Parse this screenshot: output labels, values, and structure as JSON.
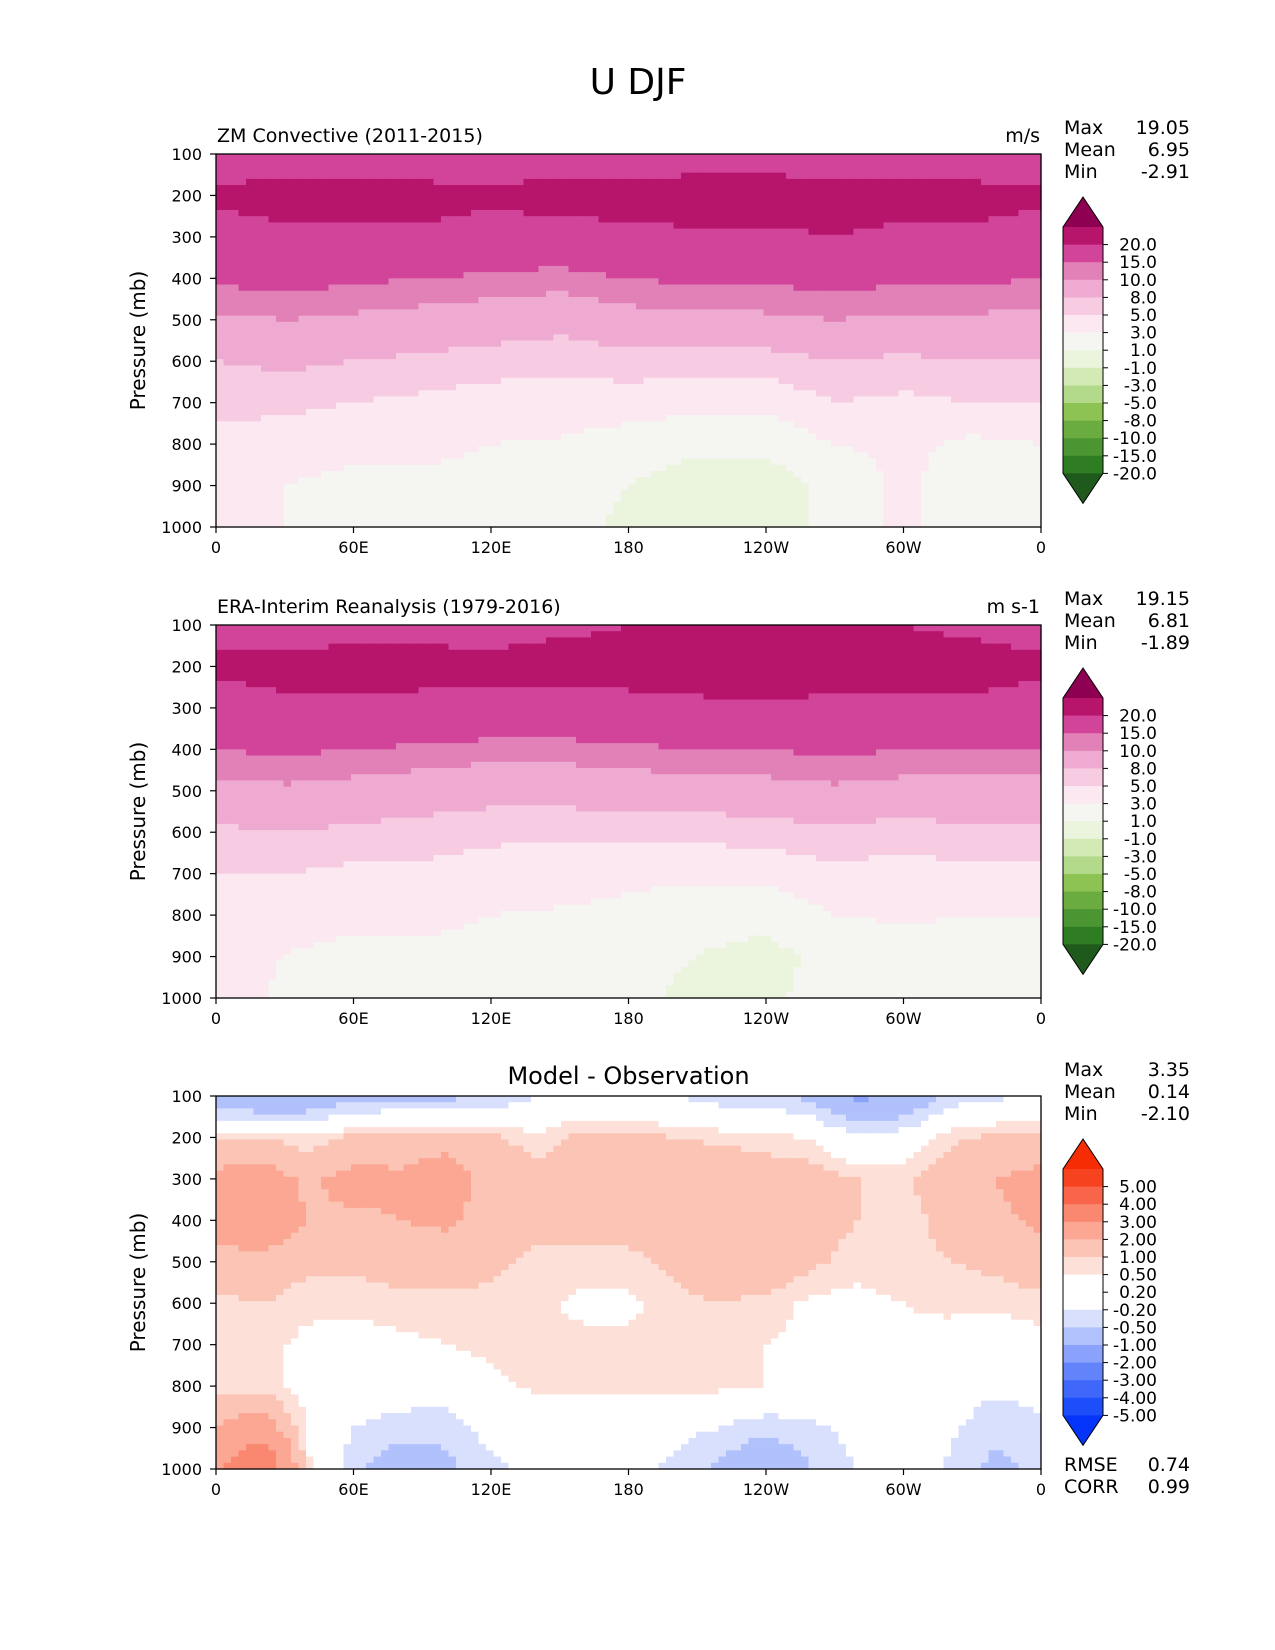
{
  "figure": {
    "suptitle": "U DJF"
  },
  "colormaps": {
    "pinkgreen": [
      "#1f5a1c",
      "#2f7d23",
      "#4b9633",
      "#6aac3f",
      "#8dc353",
      "#b3d98b",
      "#d4eab5",
      "#ebf4dd",
      "#f5f5f2",
      "#fbe8f1",
      "#f7cbe1",
      "#efaad1",
      "#e281b7",
      "#d1449a",
      "#b7146b",
      "#8e0152"
    ],
    "bluered": [
      "#0434f9",
      "#1e4ef9",
      "#3f68fa",
      "#6383fa",
      "#8aa2fb",
      "#b1c1fc",
      "#d8e0fe",
      "#ffffff",
      "#ffffff",
      "#fde1d8",
      "#fcc4b5",
      "#fba794",
      "#fa8870",
      "#f8654a",
      "#f7421f",
      "#f62c05"
    ]
  },
  "chart_data": [
    {
      "id": "model",
      "type": "contourf",
      "title": "ZM Convective (2011-2015)",
      "units": "m/s",
      "ylabel": "Pressure (mb)",
      "x_ticks": [
        "0",
        "60E",
        "120E",
        "180",
        "120W",
        "60W",
        "0"
      ],
      "y_ticks": [
        "100",
        "200",
        "300",
        "400",
        "500",
        "600",
        "700",
        "800",
        "900",
        "1000"
      ],
      "ylim": [
        100,
        1000
      ],
      "xlim": [
        0,
        360
      ],
      "colormap": "pinkgreen",
      "levels": [
        "-20.0",
        "-15.0",
        "-10.0",
        "-8.0",
        "-5.0",
        "-3.0",
        "-1.0",
        "1.0",
        "3.0",
        "5.0",
        "8.0",
        "10.0",
        "15.0",
        "20.0"
      ],
      "level_values": [
        -20,
        -15,
        -10,
        -8,
        -5,
        -3,
        -1,
        1,
        3,
        5,
        8,
        10,
        15,
        20
      ],
      "stats": [
        {
          "label": "Max",
          "value": "19.05"
        },
        {
          "label": "Mean",
          "value": "6.95"
        },
        {
          "label": "Min",
          "value": "-2.91"
        }
      ],
      "grid_lon": [
        0,
        30,
        60,
        90,
        120,
        150,
        180,
        210,
        240,
        270,
        300,
        330,
        360
      ],
      "grid_p": [
        100,
        200,
        300,
        400,
        500,
        600,
        700,
        800,
        900,
        1000
      ],
      "grid_values": [
        [
          12,
          12,
          11,
          11,
          12,
          12,
          12,
          12,
          12,
          12,
          11,
          11,
          12
        ],
        [
          16,
          17,
          17,
          17,
          16,
          17,
          17,
          18,
          18,
          17,
          17,
          17,
          16
        ],
        [
          13,
          14,
          14,
          14,
          13,
          13,
          14,
          14,
          14,
          15,
          14,
          14,
          13
        ],
        [
          10.5,
          11,
          10.5,
          10,
          9.5,
          9,
          10,
          10.5,
          10.5,
          11,
          10.5,
          10.5,
          10
        ],
        [
          7.5,
          8,
          7.5,
          7,
          6.5,
          6,
          7,
          7,
          7.5,
          8,
          7.5,
          7.5,
          7.5
        ],
        [
          5,
          5.5,
          5,
          4.5,
          4,
          3.5,
          4,
          4,
          4,
          5,
          4.5,
          5,
          5
        ],
        [
          3.5,
          3.5,
          3,
          2.5,
          2,
          2,
          2,
          1.5,
          1.5,
          3,
          2.5,
          3,
          3
        ],
        [
          2.5,
          2,
          1.5,
          1.5,
          1,
          0.8,
          0,
          -0.5,
          -0.5,
          1,
          1.5,
          0.5,
          1
        ],
        [
          2,
          1,
          0.5,
          0.5,
          0.5,
          0,
          -1,
          -2,
          -2,
          -0.5,
          1.5,
          -0.5,
          0
        ],
        [
          3,
          1,
          -0.5,
          -0.5,
          0,
          0,
          -1.5,
          -2.5,
          -2.5,
          0,
          1.5,
          -1,
          0
        ]
      ]
    },
    {
      "id": "obs",
      "type": "contourf",
      "title": "ERA-Interim Reanalysis (1979-2016)",
      "units": "m s-1",
      "ylabel": "Pressure (mb)",
      "x_ticks": [
        "0",
        "60E",
        "120E",
        "180",
        "120W",
        "60W",
        "0"
      ],
      "y_ticks": [
        "100",
        "200",
        "300",
        "400",
        "500",
        "600",
        "700",
        "800",
        "900",
        "1000"
      ],
      "ylim": [
        100,
        1000
      ],
      "xlim": [
        0,
        360
      ],
      "colormap": "pinkgreen",
      "levels": [
        "-20.0",
        "-15.0",
        "-10.0",
        "-8.0",
        "-5.0",
        "-3.0",
        "-1.0",
        "1.0",
        "3.0",
        "5.0",
        "8.0",
        "10.0",
        "15.0",
        "20.0"
      ],
      "level_values": [
        -20,
        -15,
        -10,
        -8,
        -5,
        -3,
        -1,
        1,
        3,
        5,
        8,
        10,
        15,
        20
      ],
      "stats": [
        {
          "label": "Max",
          "value": "19.15"
        },
        {
          "label": "Mean",
          "value": "6.81"
        },
        {
          "label": "Min",
          "value": "-1.89"
        }
      ],
      "grid_lon": [
        0,
        30,
        60,
        90,
        120,
        150,
        180,
        210,
        240,
        270,
        300,
        330,
        360
      ],
      "grid_p": [
        100,
        200,
        300,
        400,
        500,
        600,
        700,
        800,
        900,
        1000
      ],
      "grid_values": [
        [
          13,
          13,
          13,
          13,
          13,
          14,
          15,
          16,
          16,
          16,
          15,
          14,
          13
        ],
        [
          16,
          16.5,
          17,
          17,
          16.5,
          17,
          17,
          17.5,
          17.5,
          17,
          17,
          17,
          16
        ],
        [
          13,
          14,
          14,
          13.5,
          13,
          13,
          13.5,
          14,
          14.5,
          14,
          14,
          14,
          13
        ],
        [
          10,
          10.5,
          10,
          9.5,
          9,
          9,
          9.5,
          10,
          10,
          10.5,
          10,
          10,
          10
        ],
        [
          7,
          7.5,
          7,
          6.5,
          6,
          6,
          6.5,
          6.5,
          7,
          7.5,
          7,
          7,
          7
        ],
        [
          4.5,
          5,
          4.5,
          4,
          3.5,
          3.5,
          3.5,
          3.5,
          4,
          4.5,
          4,
          4.5,
          4.5
        ],
        [
          3,
          3,
          2.5,
          2.5,
          2,
          1.8,
          1.5,
          1.5,
          1.5,
          2.5,
          2,
          2.5,
          2.5
        ],
        [
          2,
          1.5,
          1.5,
          1.5,
          1,
          0.8,
          0.5,
          -0.5,
          -0.5,
          1,
          1.2,
          1,
          1
        ],
        [
          2,
          1,
          0.5,
          0.5,
          0.5,
          0,
          -0.5,
          -1,
          -1.5,
          -0.5,
          0.5,
          0,
          0
        ],
        [
          2.5,
          0.5,
          0,
          0,
          0,
          0,
          -0.5,
          -1.5,
          -1.5,
          0,
          0.5,
          -0.5,
          0
        ]
      ]
    },
    {
      "id": "diff",
      "type": "contourf",
      "title": "Model - Observation",
      "ylabel": "Pressure (mb)",
      "x_ticks": [
        "0",
        "60E",
        "120E",
        "180",
        "120W",
        "60W",
        "0"
      ],
      "y_ticks": [
        "100",
        "200",
        "300",
        "400",
        "500",
        "600",
        "700",
        "800",
        "900",
        "1000"
      ],
      "ylim": [
        100,
        1000
      ],
      "xlim": [
        0,
        360
      ],
      "colormap": "bluered",
      "levels": [
        "-5.00",
        "-4.00",
        "-3.00",
        "-2.00",
        "-1.00",
        "-0.50",
        "-0.20",
        "0.20",
        "0.50",
        "1.00",
        "2.00",
        "3.00",
        "4.00",
        "5.00"
      ],
      "level_values": [
        -5,
        -4,
        -3,
        -2,
        -1,
        -0.5,
        -0.2,
        0.2,
        0.5,
        1,
        2,
        3,
        4,
        5
      ],
      "stats": [
        {
          "label": "Max",
          "value": "3.35"
        },
        {
          "label": "Mean",
          "value": "0.14"
        },
        {
          "label": "Min",
          "value": "-2.10"
        }
      ],
      "extra_stats": [
        {
          "label": "RMSE",
          "value": "0.74"
        },
        {
          "label": "CORR",
          "value": "0.99"
        }
      ],
      "grid_lon": [
        0,
        20,
        40,
        60,
        80,
        100,
        120,
        140,
        160,
        180,
        200,
        220,
        240,
        260,
        280,
        300,
        320,
        340,
        360
      ],
      "grid_p": [
        100,
        200,
        300,
        400,
        500,
        600,
        700,
        800,
        900,
        1000
      ],
      "grid_values": [
        [
          -1.5,
          -2.0,
          -1.8,
          -1.2,
          -1.2,
          -1.2,
          -1.0,
          -0.5,
          -0.3,
          -0.5,
          -0.5,
          -0.8,
          -0.8,
          -1.2,
          -2.2,
          -1.8,
          -0.8,
          -0.6,
          -0.5
        ],
        [
          0.4,
          0.5,
          0.3,
          0.6,
          0.7,
          0.8,
          0.6,
          0.3,
          0.6,
          0.6,
          0.5,
          0.4,
          0.3,
          0.2,
          -0.4,
          -0.2,
          0.4,
          0.6,
          0.6
        ],
        [
          1.2,
          1.3,
          0.9,
          1.2,
          1.1,
          1.3,
          0.8,
          0.7,
          0.8,
          0.8,
          0.9,
          0.9,
          0.8,
          0.7,
          0.5,
          0.4,
          0.8,
          1.0,
          1.2
        ],
        [
          1.2,
          1.4,
          1.0,
          0.9,
          1.0,
          1.1,
          0.8,
          0.6,
          0.7,
          0.7,
          0.8,
          0.9,
          0.9,
          0.8,
          0.5,
          0.4,
          0.6,
          0.9,
          1.1
        ],
        [
          0.8,
          0.9,
          0.6,
          0.6,
          0.7,
          0.7,
          0.6,
          0.4,
          0.4,
          0.4,
          0.6,
          0.8,
          0.9,
          0.6,
          0.3,
          0.4,
          0.5,
          0.6,
          0.8
        ],
        [
          0.4,
          0.5,
          0.3,
          0.3,
          0.4,
          0.4,
          0.4,
          0.3,
          0.1,
          0.1,
          0.4,
          0.5,
          0.4,
          0.1,
          0.1,
          0.2,
          0.3,
          0.3,
          0.4
        ],
        [
          0.3,
          0.3,
          0.1,
          0.0,
          0.1,
          0.2,
          0.3,
          0.3,
          0.3,
          0.3,
          0.3,
          0.3,
          0.2,
          0.1,
          0.1,
          0.1,
          0.0,
          -0.1,
          0.0
        ],
        [
          0.4,
          0.3,
          0.1,
          -0.1,
          -0.2,
          -0.2,
          0.1,
          0.3,
          0.3,
          0.3,
          0.3,
          0.3,
          0.2,
          0.0,
          -0.1,
          0.0,
          -0.2,
          -0.4,
          -0.3
        ],
        [
          1.0,
          1.5,
          0.1,
          -0.5,
          -0.7,
          -0.8,
          -0.3,
          -0.2,
          -0.2,
          -0.2,
          -0.3,
          -0.5,
          -0.8,
          -0.6,
          -0.3,
          0.0,
          -0.4,
          -0.8,
          -0.6
        ],
        [
          1.8,
          3.2,
          0.3,
          -0.8,
          -1.5,
          -1.2,
          -0.6,
          -0.4,
          -0.3,
          -0.4,
          -0.6,
          -1.2,
          -1.8,
          -1.0,
          -0.5,
          0.2,
          -0.6,
          -1.2,
          -0.8
        ]
      ]
    }
  ]
}
